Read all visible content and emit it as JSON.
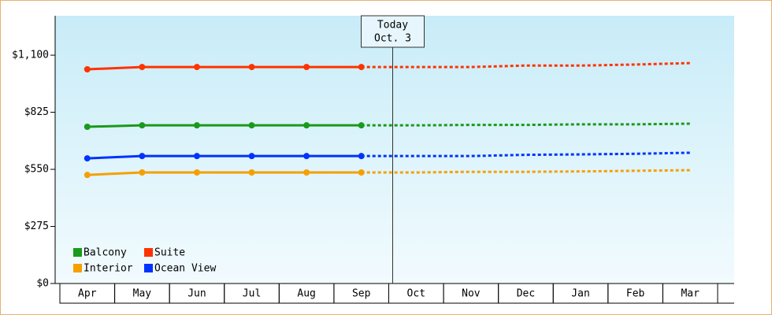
{
  "chart_data": {
    "type": "line",
    "today_label": [
      "Today",
      "Oct. 3"
    ],
    "categories": [
      "Apr",
      "May",
      "Jun",
      "Jul",
      "Aug",
      "Sep",
      "Oct",
      "Nov",
      "Dec",
      "Jan",
      "Feb",
      "Mar"
    ],
    "series": [
      {
        "name": "Balcony",
        "color": "#1a9a1a",
        "values": [
          755,
          762,
          762,
          762,
          762,
          762,
          762,
          764,
          764,
          767,
          767,
          770
        ]
      },
      {
        "name": "Suite",
        "color": "#ff3300",
        "values": [
          1032,
          1043,
          1043,
          1043,
          1043,
          1043,
          1043,
          1043,
          1050,
          1050,
          1055,
          1062
        ]
      },
      {
        "name": "Interior",
        "color": "#f5a000",
        "values": [
          523,
          535,
          535,
          535,
          535,
          535,
          535,
          538,
          538,
          540,
          543,
          546
        ]
      },
      {
        "name": "Ocean View",
        "color": "#0033ff",
        "values": [
          603,
          614,
          614,
          614,
          614,
          614,
          614,
          614,
          620,
          622,
          625,
          630
        ]
      }
    ],
    "ylim": [
      0,
      1290
    ],
    "yticks": [
      {
        "value": 0,
        "label": "$0"
      },
      {
        "value": 275,
        "label": "$275"
      },
      {
        "value": 550,
        "label": "$550"
      },
      {
        "value": 825,
        "label": "$825"
      },
      {
        "value": 1100,
        "label": "$1,100"
      }
    ],
    "legend": "lower left"
  }
}
